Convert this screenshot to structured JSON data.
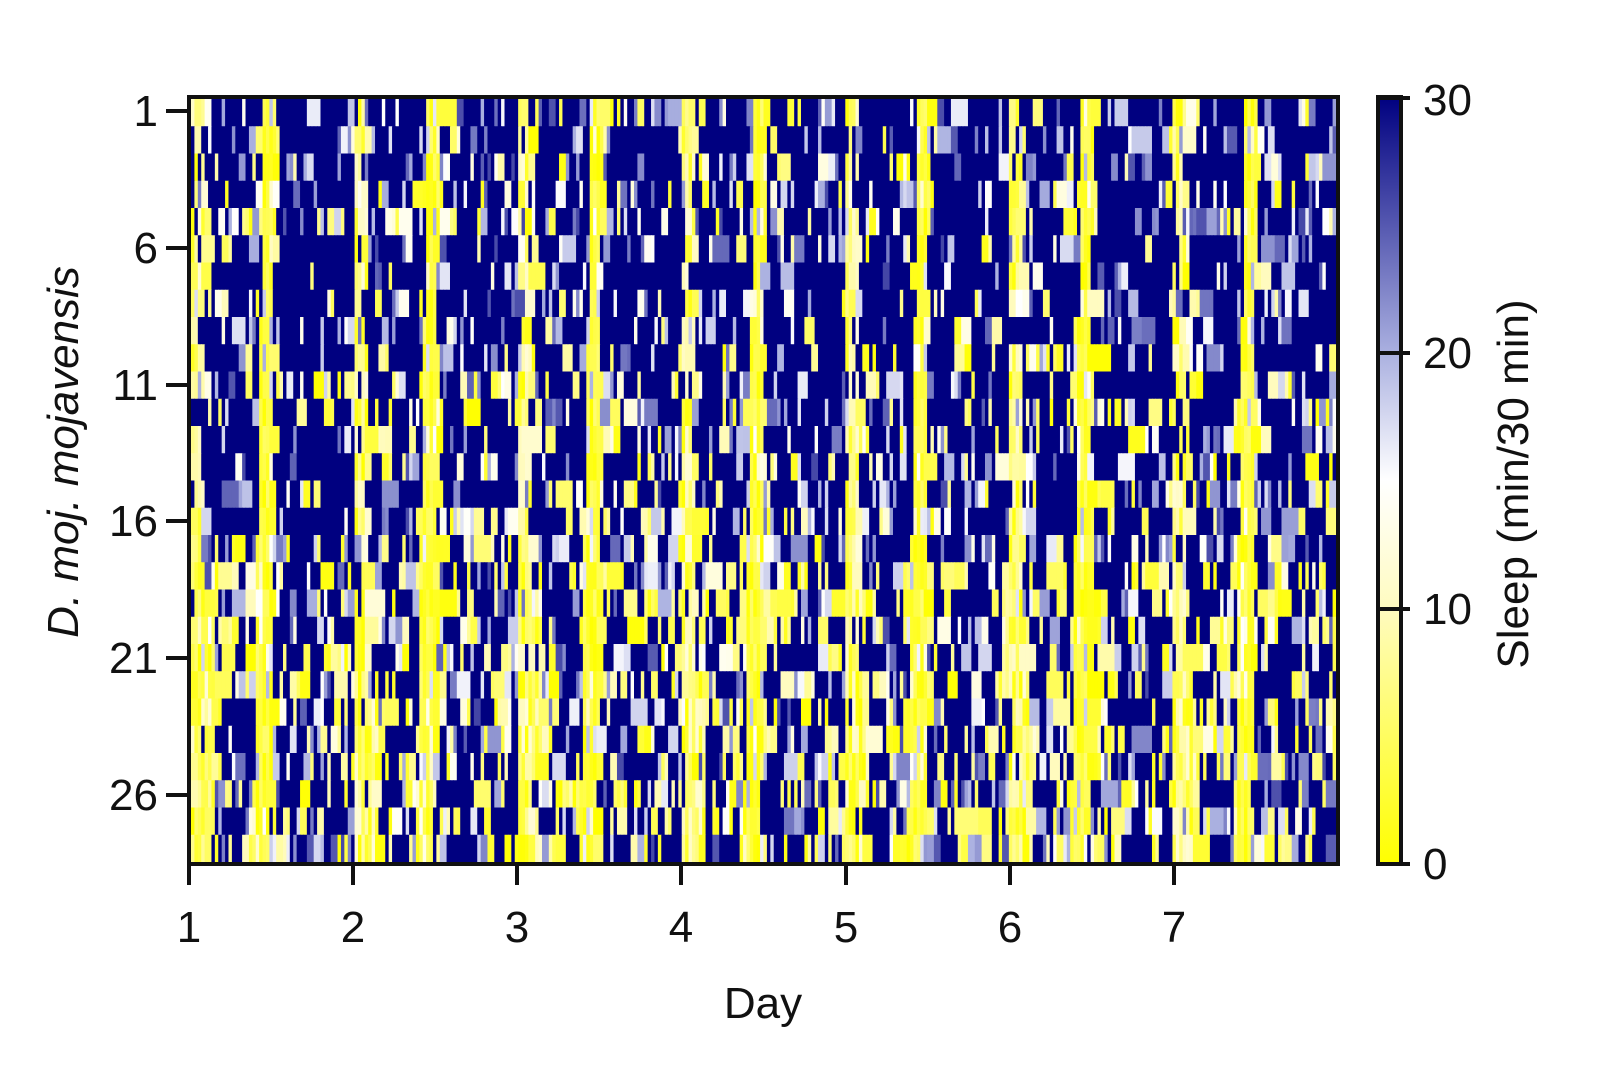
{
  "chart_data": {
    "type": "heatmap",
    "xlabel": "Day",
    "ylabel": "D. moj. mojavensis",
    "colorbar_label": "Sleep (min/30 min)",
    "x_ticks": [
      "1",
      "2",
      "3",
      "4",
      "5",
      "6",
      "7"
    ],
    "x_tick_values": [
      1,
      2,
      3,
      4,
      5,
      6,
      7
    ],
    "xlim": [
      1,
      8
    ],
    "y_ticks": [
      "1",
      "6",
      "11",
      "16",
      "21",
      "26"
    ],
    "y_tick_values": [
      1,
      6,
      11,
      16,
      21,
      26
    ],
    "ylim": [
      1,
      28
    ],
    "colorbar_ticks": [
      "0",
      "10",
      "20",
      "30"
    ],
    "colorbar_tick_values": [
      0,
      10,
      20,
      30
    ],
    "zlim": [
      0,
      30
    ],
    "colormap": [
      {
        "value": 0,
        "color": "#ffff00"
      },
      {
        "value": 10,
        "color": "#fffbc0"
      },
      {
        "value": 15,
        "color": "#ffffff"
      },
      {
        "value": 20,
        "color": "#aab0e0"
      },
      {
        "value": 30,
        "color": "#000080"
      }
    ],
    "n_individuals": 28,
    "n_days": 7,
    "bins_per_day": 48
  }
}
